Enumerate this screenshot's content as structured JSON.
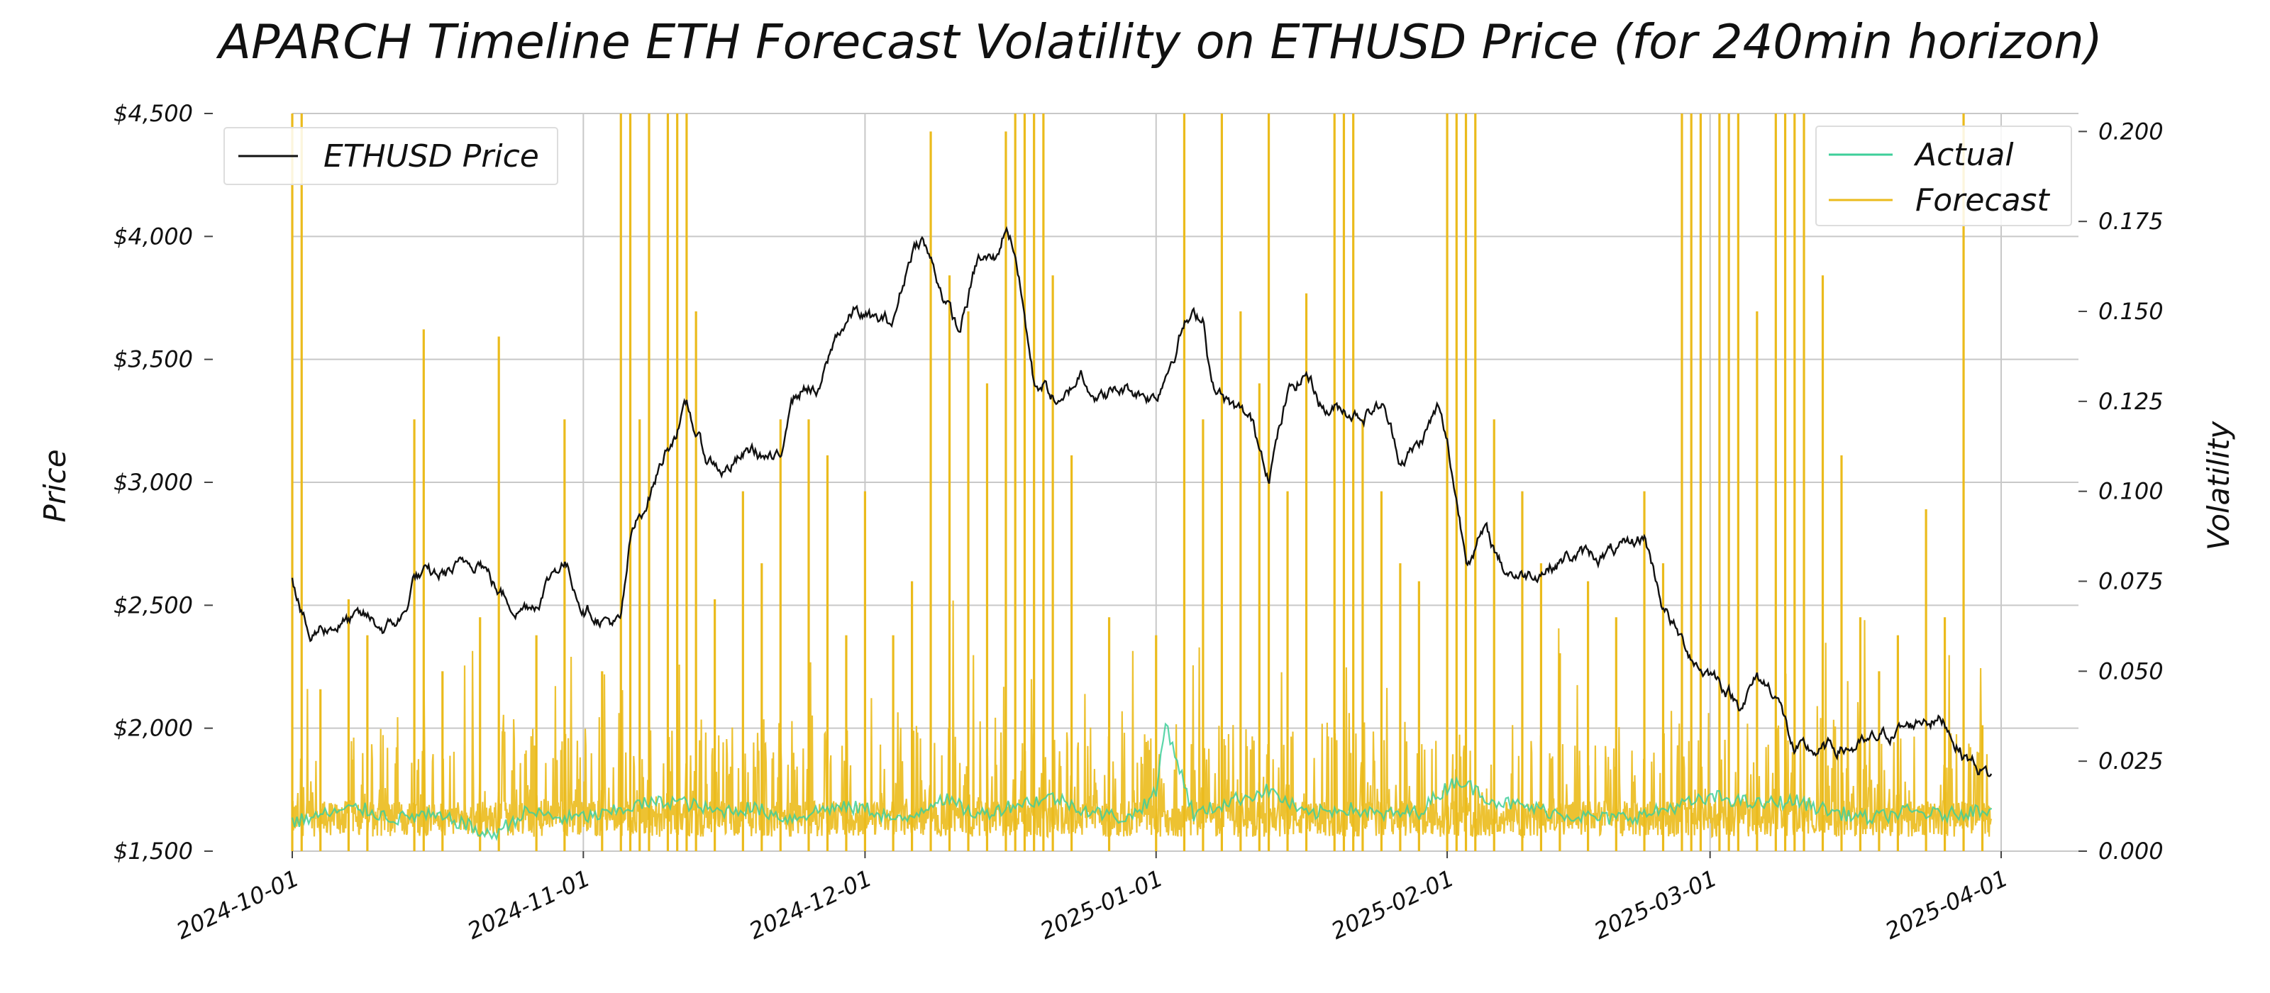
{
  "chart_data": {
    "type": "line",
    "title": "APARCH Timeline ETH Forecast Volatility on ETHUSD Price (for 240min horizon)",
    "ylabel_left": "Price",
    "ylabel_right": "Volatility",
    "x_range": [
      "2024-10-01",
      "2025-03-31"
    ],
    "x_ticks": [
      "2024-10-01",
      "2024-11-01",
      "2024-12-01",
      "2025-01-01",
      "2025-02-01",
      "2025-03-01",
      "2025-04-01"
    ],
    "y_left_ticks": [
      "$1,500",
      "$2,000",
      "$2,500",
      "$3,000",
      "$3,500",
      "$4,000",
      "$4,500"
    ],
    "y_left_range": [
      1500,
      4500
    ],
    "y_right_ticks": [
      "0.000",
      "0.025",
      "0.050",
      "0.075",
      "0.100",
      "0.125",
      "0.150",
      "0.175",
      "0.200"
    ],
    "y_right_range": [
      0,
      0.205
    ],
    "grid": true,
    "legend_left": {
      "placement": "top-left",
      "entries": [
        "ETHUSD Price"
      ]
    },
    "legend_right": {
      "placement": "top-right",
      "entries": [
        "Actual",
        "Forecast"
      ]
    },
    "colors": {
      "price": "#111111",
      "actual": "#3ecf9a",
      "forecast": "#ebbb1c"
    },
    "series": [
      {
        "name": "ETHUSD Price",
        "axis": "left",
        "points": [
          [
            "2024-10-01",
            2620
          ],
          [
            "2024-10-02",
            2470
          ],
          [
            "2024-10-03",
            2350
          ],
          [
            "2024-10-04",
            2410
          ],
          [
            "2024-10-06",
            2430
          ],
          [
            "2024-10-09",
            2440
          ],
          [
            "2024-10-11",
            2400
          ],
          [
            "2024-10-13",
            2460
          ],
          [
            "2024-10-14",
            2620
          ],
          [
            "2024-10-16",
            2610
          ],
          [
            "2024-10-19",
            2650
          ],
          [
            "2024-10-21",
            2700
          ],
          [
            "2024-10-23",
            2550
          ],
          [
            "2024-10-25",
            2490
          ],
          [
            "2024-10-27",
            2520
          ],
          [
            "2024-10-29",
            2650
          ],
          [
            "2024-10-30",
            2680
          ],
          [
            "2024-11-01",
            2500
          ],
          [
            "2024-11-03",
            2450
          ],
          [
            "2024-11-05",
            2420
          ],
          [
            "2024-11-06",
            2750
          ],
          [
            "2024-11-08",
            2950
          ],
          [
            "2024-11-10",
            3150
          ],
          [
            "2024-11-12",
            3300
          ],
          [
            "2024-11-14",
            3100
          ],
          [
            "2024-11-16",
            3050
          ],
          [
            "2024-11-19",
            3130
          ],
          [
            "2024-11-22",
            3070
          ],
          [
            "2024-11-23",
            3350
          ],
          [
            "2024-11-25",
            3400
          ],
          [
            "2024-11-26",
            3350
          ],
          [
            "2024-11-28",
            3600
          ],
          [
            "2024-11-30",
            3700
          ],
          [
            "2024-12-02",
            3650
          ],
          [
            "2024-12-04",
            3650
          ],
          [
            "2024-12-06",
            3950
          ],
          [
            "2024-12-07",
            4000
          ],
          [
            "2024-12-09",
            3800
          ],
          [
            "2024-12-11",
            3600
          ],
          [
            "2024-12-13",
            3900
          ],
          [
            "2024-12-15",
            3900
          ],
          [
            "2024-12-16",
            4050
          ],
          [
            "2024-12-17",
            3950
          ],
          [
            "2024-12-19",
            3400
          ],
          [
            "2024-12-20",
            3400
          ],
          [
            "2024-12-22",
            3300
          ],
          [
            "2024-12-24",
            3450
          ],
          [
            "2024-12-26",
            3350
          ],
          [
            "2024-12-29",
            3380
          ],
          [
            "2025-01-01",
            3350
          ],
          [
            "2025-01-04",
            3650
          ],
          [
            "2025-01-06",
            3680
          ],
          [
            "2025-01-07",
            3400
          ],
          [
            "2025-01-09",
            3300
          ],
          [
            "2025-01-11",
            3250
          ],
          [
            "2025-01-13",
            3050
          ],
          [
            "2025-01-15",
            3350
          ],
          [
            "2025-01-17",
            3450
          ],
          [
            "2025-01-19",
            3300
          ],
          [
            "2025-01-21",
            3300
          ],
          [
            "2025-01-23",
            3280
          ],
          [
            "2025-01-25",
            3320
          ],
          [
            "2025-01-27",
            3100
          ],
          [
            "2025-01-29",
            3150
          ],
          [
            "2025-01-31",
            3300
          ],
          [
            "2025-02-01",
            3150
          ],
          [
            "2025-02-03",
            2700
          ],
          [
            "2025-02-05",
            2800
          ],
          [
            "2025-02-07",
            2650
          ],
          [
            "2025-02-09",
            2620
          ],
          [
            "2025-02-11",
            2650
          ],
          [
            "2025-02-14",
            2700
          ],
          [
            "2025-02-17",
            2700
          ],
          [
            "2025-02-20",
            2720
          ],
          [
            "2025-02-22",
            2780
          ],
          [
            "2025-02-24",
            2500
          ],
          [
            "2025-02-26",
            2350
          ],
          [
            "2025-02-28",
            2250
          ],
          [
            "2025-03-02",
            2200
          ],
          [
            "2025-03-04",
            2100
          ],
          [
            "2025-03-06",
            2200
          ],
          [
            "2025-03-08",
            2150
          ],
          [
            "2025-03-10",
            1900
          ],
          [
            "2025-03-12",
            1900
          ],
          [
            "2025-03-15",
            1920
          ],
          [
            "2025-03-18",
            1930
          ],
          [
            "2025-03-20",
            1980
          ],
          [
            "2025-03-22",
            2000
          ],
          [
            "2025-03-24",
            2050
          ],
          [
            "2025-03-26",
            2030
          ],
          [
            "2025-03-28",
            1900
          ],
          [
            "2025-03-31",
            1800
          ]
        ]
      },
      {
        "name": "Actual",
        "axis": "right",
        "points": [
          [
            "2024-10-01",
            0.008
          ],
          [
            "2024-10-04",
            0.01
          ],
          [
            "2024-10-08",
            0.012
          ],
          [
            "2024-10-12",
            0.009
          ],
          [
            "2024-10-15",
            0.01
          ],
          [
            "2024-10-19",
            0.008
          ],
          [
            "2024-10-22",
            0.004
          ],
          [
            "2024-10-26",
            0.011
          ],
          [
            "2024-10-30",
            0.009
          ],
          [
            "2024-11-03",
            0.01
          ],
          [
            "2024-11-07",
            0.013
          ],
          [
            "2024-11-11",
            0.014
          ],
          [
            "2024-11-15",
            0.011
          ],
          [
            "2024-11-19",
            0.012
          ],
          [
            "2024-11-23",
            0.009
          ],
          [
            "2024-11-27",
            0.012
          ],
          [
            "2024-12-01",
            0.012
          ],
          [
            "2024-12-05",
            0.008
          ],
          [
            "2024-12-09",
            0.015
          ],
          [
            "2024-12-13",
            0.01
          ],
          [
            "2024-12-17",
            0.013
          ],
          [
            "2024-12-21",
            0.015
          ],
          [
            "2024-12-25",
            0.011
          ],
          [
            "2024-12-29",
            0.009
          ],
          [
            "2025-01-01",
            0.016
          ],
          [
            "2025-01-02",
            0.036
          ],
          [
            "2025-01-05",
            0.01
          ],
          [
            "2025-01-09",
            0.014
          ],
          [
            "2025-01-13",
            0.017
          ],
          [
            "2025-01-17",
            0.01
          ],
          [
            "2025-01-21",
            0.012
          ],
          [
            "2025-01-25",
            0.01
          ],
          [
            "2025-01-29",
            0.011
          ],
          [
            "2025-02-02",
            0.02
          ],
          [
            "2025-02-06",
            0.014
          ],
          [
            "2025-02-10",
            0.012
          ],
          [
            "2025-02-14",
            0.01
          ],
          [
            "2025-02-18",
            0.009
          ],
          [
            "2025-02-22",
            0.01
          ],
          [
            "2025-02-26",
            0.013
          ],
          [
            "2025-03-02",
            0.015
          ],
          [
            "2025-03-06",
            0.013
          ],
          [
            "2025-03-10",
            0.014
          ],
          [
            "2025-03-14",
            0.011
          ],
          [
            "2025-03-18",
            0.009
          ],
          [
            "2025-03-22",
            0.011
          ],
          [
            "2025-03-26",
            0.01
          ],
          [
            "2025-03-31",
            0.012
          ]
        ]
      },
      {
        "name": "Forecast",
        "axis": "right",
        "baseline": 0.004,
        "peaks": [
          [
            "2024-10-01",
            0.205
          ],
          [
            "2024-10-02",
            0.205
          ],
          [
            "2024-10-04",
            0.045
          ],
          [
            "2024-10-07",
            0.07
          ],
          [
            "2024-10-09",
            0.06
          ],
          [
            "2024-10-14",
            0.12
          ],
          [
            "2024-10-15",
            0.145
          ],
          [
            "2024-10-17",
            0.05
          ],
          [
            "2024-10-21",
            0.065
          ],
          [
            "2024-10-23",
            0.143
          ],
          [
            "2024-10-27",
            0.06
          ],
          [
            "2024-10-30",
            0.12
          ],
          [
            "2024-11-03",
            0.05
          ],
          [
            "2024-11-05",
            0.205
          ],
          [
            "2024-11-06",
            0.205
          ],
          [
            "2024-11-07",
            0.12
          ],
          [
            "2024-11-08",
            0.205
          ],
          [
            "2024-11-10",
            0.205
          ],
          [
            "2024-11-11",
            0.205
          ],
          [
            "2024-11-12",
            0.205
          ],
          [
            "2024-11-13",
            0.15
          ],
          [
            "2024-11-15",
            0.07
          ],
          [
            "2024-11-18",
            0.1
          ],
          [
            "2024-11-20",
            0.08
          ],
          [
            "2024-11-22",
            0.12
          ],
          [
            "2024-11-25",
            0.12
          ],
          [
            "2024-11-27",
            0.11
          ],
          [
            "2024-11-29",
            0.06
          ],
          [
            "2024-12-01",
            0.1
          ],
          [
            "2024-12-04",
            0.06
          ],
          [
            "2024-12-06",
            0.075
          ],
          [
            "2024-12-08",
            0.2
          ],
          [
            "2024-12-10",
            0.16
          ],
          [
            "2024-12-12",
            0.15
          ],
          [
            "2024-12-14",
            0.13
          ],
          [
            "2024-12-16",
            0.2
          ],
          [
            "2024-12-17",
            0.205
          ],
          [
            "2024-12-18",
            0.205
          ],
          [
            "2024-12-19",
            0.205
          ],
          [
            "2024-12-20",
            0.205
          ],
          [
            "2024-12-21",
            0.16
          ],
          [
            "2024-12-23",
            0.11
          ],
          [
            "2024-12-27",
            0.065
          ],
          [
            "2025-01-01",
            0.06
          ],
          [
            "2025-01-04",
            0.205
          ],
          [
            "2025-01-06",
            0.12
          ],
          [
            "2025-01-08",
            0.205
          ],
          [
            "2025-01-10",
            0.15
          ],
          [
            "2025-01-12",
            0.13
          ],
          [
            "2025-01-13",
            0.205
          ],
          [
            "2025-01-15",
            0.1
          ],
          [
            "2025-01-17",
            0.155
          ],
          [
            "2025-01-20",
            0.205
          ],
          [
            "2025-01-21",
            0.205
          ],
          [
            "2025-01-22",
            0.205
          ],
          [
            "2025-01-23",
            0.12
          ],
          [
            "2025-01-25",
            0.1
          ],
          [
            "2025-01-27",
            0.08
          ],
          [
            "2025-01-29",
            0.075
          ],
          [
            "2025-02-01",
            0.205
          ],
          [
            "2025-02-02",
            0.205
          ],
          [
            "2025-02-03",
            0.205
          ],
          [
            "2025-02-04",
            0.205
          ],
          [
            "2025-02-06",
            0.12
          ],
          [
            "2025-02-09",
            0.1
          ],
          [
            "2025-02-11",
            0.08
          ],
          [
            "2025-02-13",
            0.055
          ],
          [
            "2025-02-16",
            0.075
          ],
          [
            "2025-02-19",
            0.065
          ],
          [
            "2025-02-22",
            0.1
          ],
          [
            "2025-02-24",
            0.08
          ],
          [
            "2025-02-26",
            0.205
          ],
          [
            "2025-02-27",
            0.205
          ],
          [
            "2025-02-28",
            0.205
          ],
          [
            "2025-03-02",
            0.205
          ],
          [
            "2025-03-03",
            0.205
          ],
          [
            "2025-03-04",
            0.205
          ],
          [
            "2025-03-06",
            0.15
          ],
          [
            "2025-03-08",
            0.205
          ],
          [
            "2025-03-09",
            0.205
          ],
          [
            "2025-03-10",
            0.205
          ],
          [
            "2025-03-11",
            0.205
          ],
          [
            "2025-03-13",
            0.16
          ],
          [
            "2025-03-15",
            0.11
          ],
          [
            "2025-03-17",
            0.065
          ],
          [
            "2025-03-19",
            0.05
          ],
          [
            "2025-03-21",
            0.06
          ],
          [
            "2025-03-24",
            0.095
          ],
          [
            "2025-03-26",
            0.065
          ],
          [
            "2025-03-28",
            0.205
          ],
          [
            "2025-03-30",
            0.035
          ]
        ]
      }
    ]
  }
}
